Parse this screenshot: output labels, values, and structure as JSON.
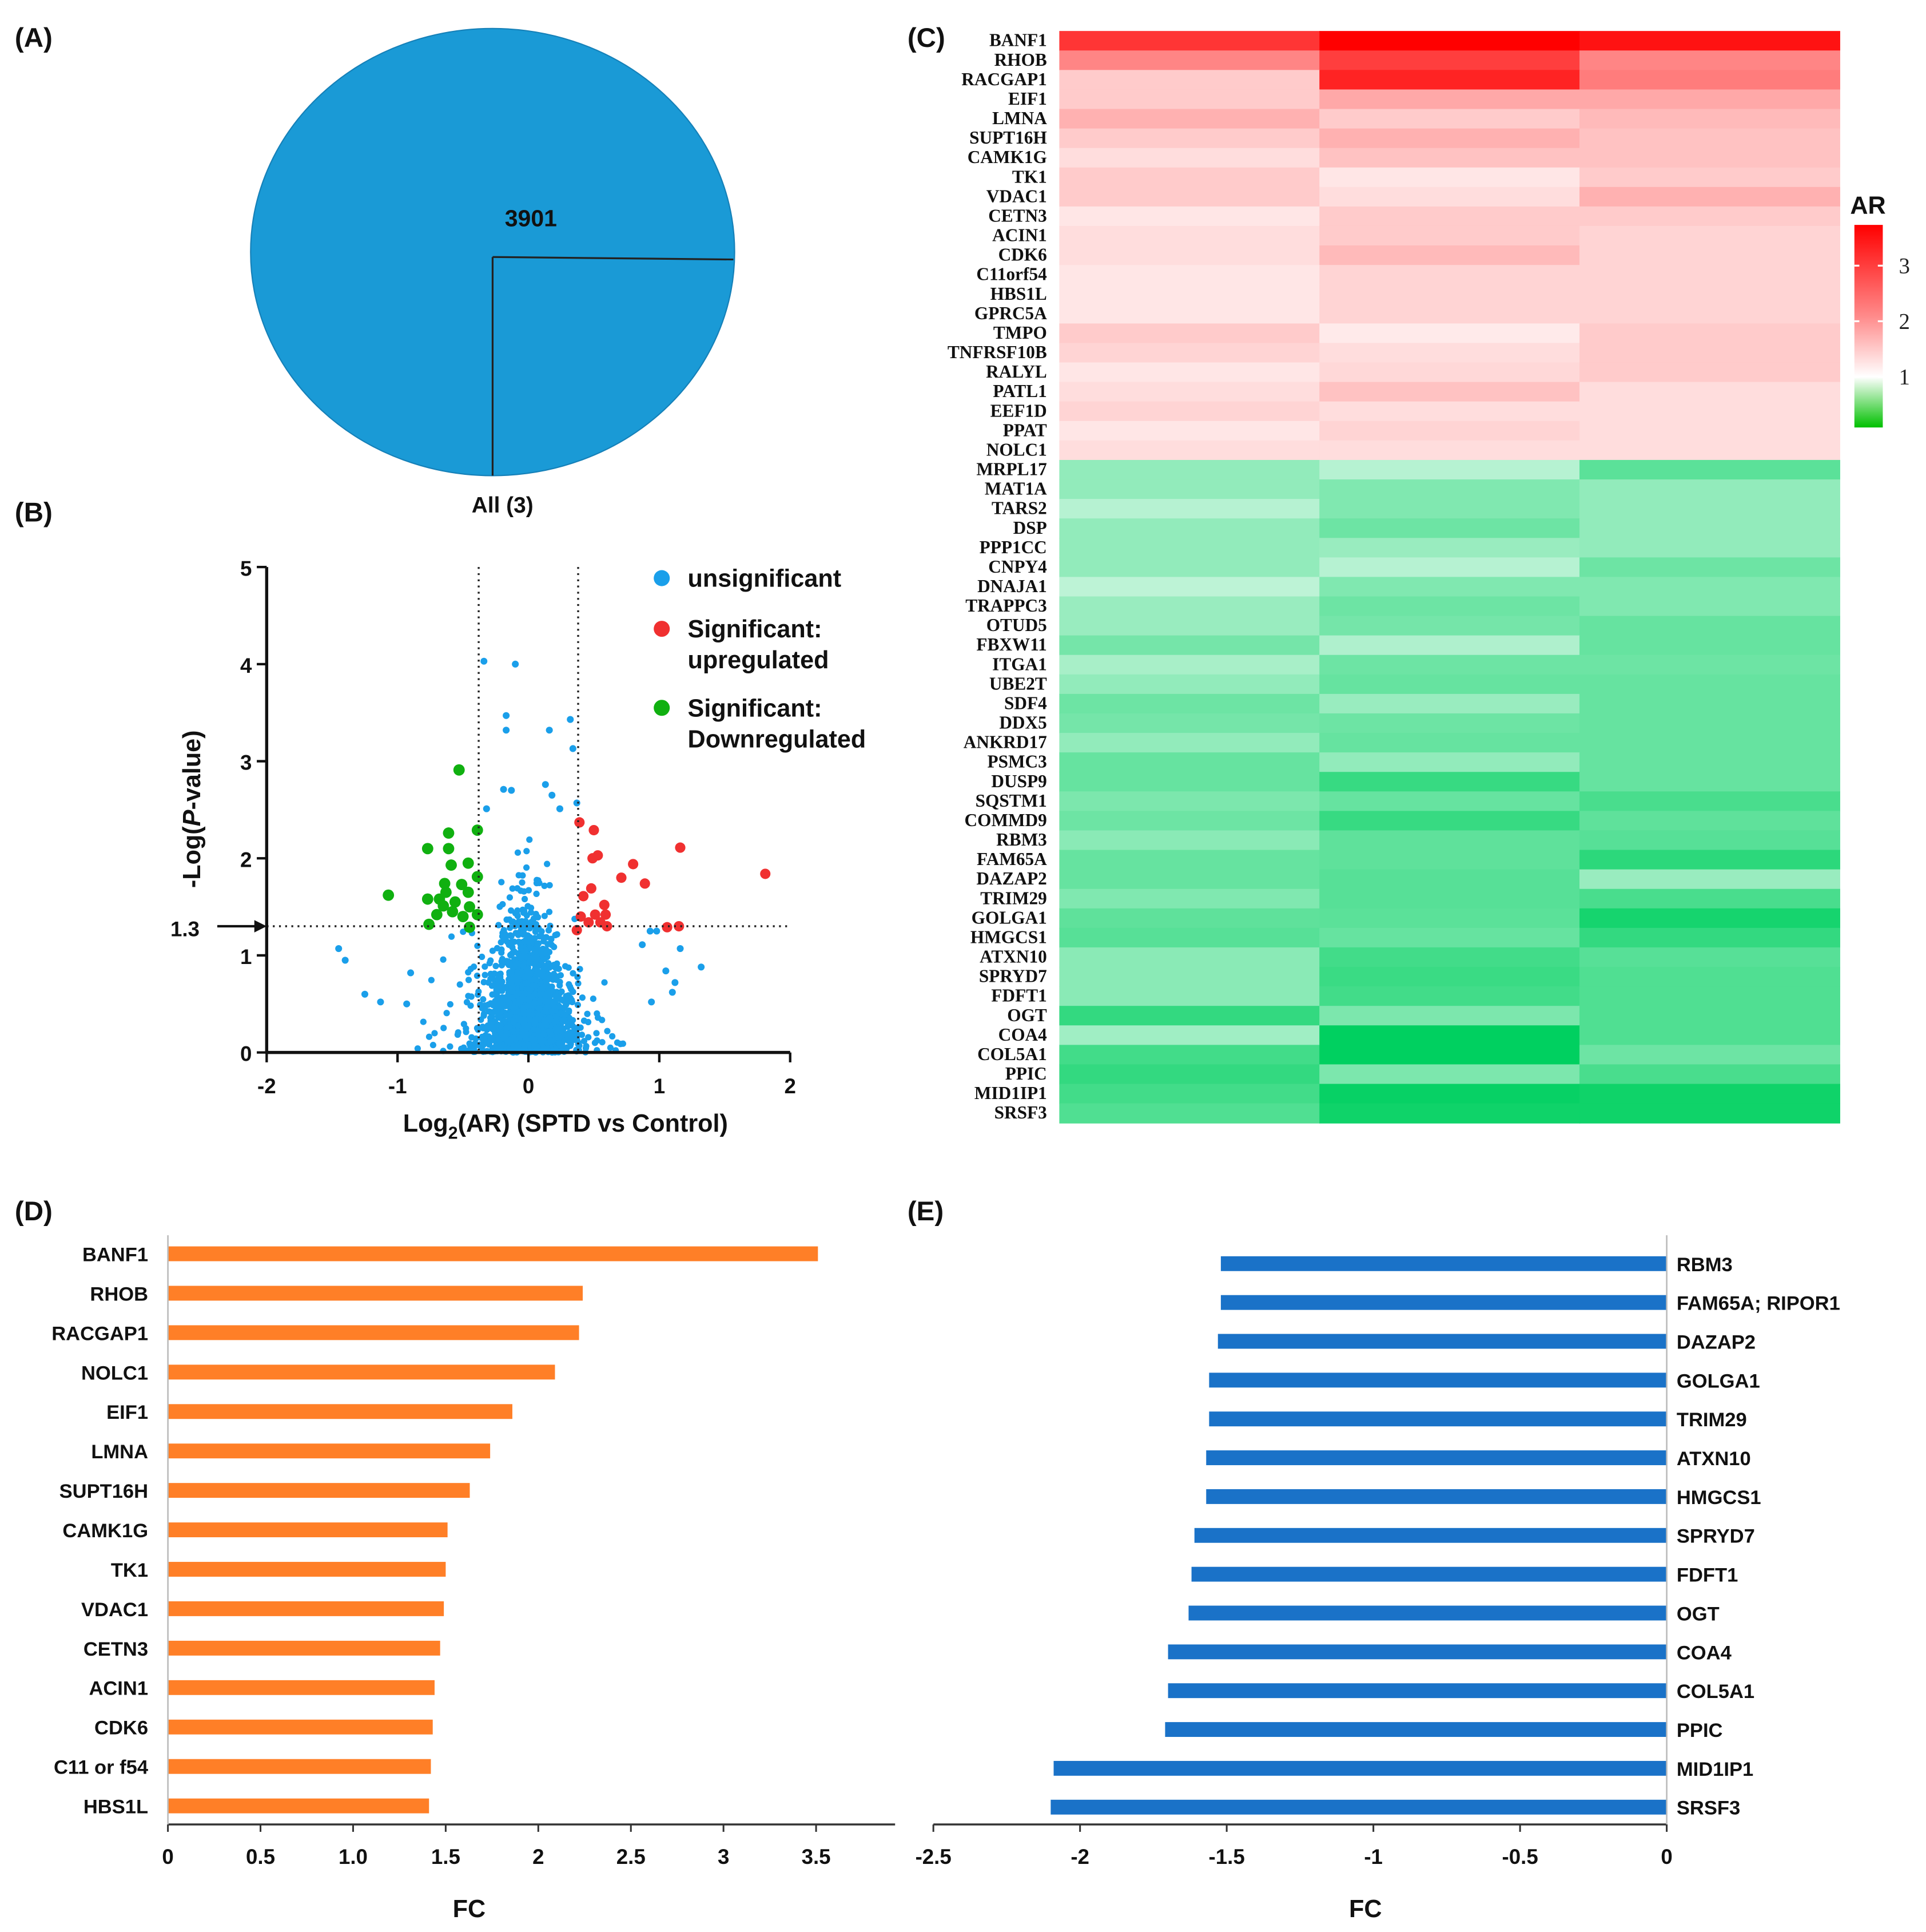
{
  "panels": {
    "a": "(A)",
    "b": "(B)",
    "c": "(C)",
    "d": "(D)",
    "e": "(E)"
  },
  "chart_data": [
    {
      "type": "pie",
      "slices": [
        {
          "label": "All (3)",
          "value": 3901
        }
      ],
      "value_label": "3901",
      "category_label": "All (3)",
      "color": "#1a9ad6"
    },
    {
      "type": "scatter",
      "xlabel_prefix": "Log",
      "xlabel_sub": "2",
      "xlabel_suffix": "(AR) (SPTD vs Control)",
      "ylabel_prefix": "-Log(",
      "ylabel_italic": "P",
      "ylabel_suffix": "-value)",
      "xlim": [
        -2,
        2
      ],
      "ylim": [
        0,
        5
      ],
      "xticks": [
        "-2",
        "-1",
        "0",
        "1",
        "2"
      ],
      "yticks": [
        "0",
        "1",
        "2",
        "3",
        "4",
        "5"
      ],
      "threshold_y": 1.3,
      "threshold_label": "1.3",
      "threshold_x": [
        -0.38,
        0.38
      ],
      "grid": false,
      "legend_position": "top-right",
      "legend": [
        {
          "label": "unsignificant",
          "color": "#1a9fea"
        },
        {
          "label": "Significant:",
          "label2": "upregulated",
          "color": "#f03030"
        },
        {
          "label": "Significant:",
          "label2": "Downregulated",
          "color": "#10b010"
        }
      ],
      "series": [
        {
          "name": "Significant: upregulated",
          "color": "#f03030",
          "points": [
            [
              0.39,
              2.37
            ],
            [
              0.5,
              2.29
            ],
            [
              1.16,
              2.11
            ],
            [
              1.81,
              1.84
            ],
            [
              0.8,
              1.94
            ],
            [
              0.71,
              1.8
            ],
            [
              0.89,
              1.74
            ],
            [
              0.49,
              2.0
            ],
            [
              0.53,
              2.03
            ],
            [
              0.48,
              1.69
            ],
            [
              0.42,
              1.61
            ],
            [
              0.58,
              1.52
            ],
            [
              0.4,
              1.4
            ],
            [
              0.51,
              1.42
            ],
            [
              0.59,
              1.42
            ],
            [
              0.46,
              1.34
            ],
            [
              0.55,
              1.34
            ],
            [
              0.6,
              1.3
            ],
            [
              0.37,
              1.26
            ],
            [
              1.06,
              1.29
            ],
            [
              1.15,
              1.3
            ]
          ]
        },
        {
          "name": "Significant: Downregulated",
          "color": "#10b010",
          "points": [
            [
              -0.53,
              2.91
            ],
            [
              -0.39,
              2.29
            ],
            [
              -0.61,
              2.26
            ],
            [
              -0.77,
              2.1
            ],
            [
              -0.61,
              2.1
            ],
            [
              -0.59,
              1.93
            ],
            [
              -0.46,
              1.95
            ],
            [
              -0.39,
              1.81
            ],
            [
              -1.07,
              1.62
            ],
            [
              -0.64,
              1.74
            ],
            [
              -0.51,
              1.73
            ],
            [
              -0.46,
              1.65
            ],
            [
              -0.77,
              1.58
            ],
            [
              -0.68,
              1.58
            ],
            [
              -0.56,
              1.55
            ],
            [
              -0.65,
              1.51
            ],
            [
              -0.58,
              1.45
            ],
            [
              -0.7,
              1.42
            ],
            [
              -0.45,
              1.5
            ],
            [
              -0.5,
              1.4
            ],
            [
              -0.39,
              1.42
            ],
            [
              -0.76,
              1.32
            ],
            [
              -0.45,
              1.29
            ],
            [
              -0.63,
              1.65
            ]
          ]
        },
        {
          "name": "unsignificant",
          "color": "#1a9fea",
          "points": [
            [
              -0.34,
              4.03
            ],
            [
              -0.1,
              4.0
            ],
            [
              -0.17,
              3.47
            ],
            [
              -0.17,
              3.32
            ],
            [
              0.16,
              3.32
            ],
            [
              0.32,
              3.43
            ],
            [
              0.34,
              3.13
            ],
            [
              -0.19,
              2.71
            ],
            [
              -0.13,
              2.7
            ],
            [
              0.13,
              2.76
            ],
            [
              0.18,
              2.65
            ],
            [
              0.37,
              2.57
            ],
            [
              -0.32,
              2.51
            ],
            [
              0.24,
              2.51
            ],
            [
              -1.45,
              1.07
            ],
            [
              -1.4,
              0.95
            ],
            [
              -1.25,
              0.6
            ],
            [
              -1.13,
              0.52
            ],
            [
              -0.93,
              0.5
            ],
            [
              -0.9,
              0.82
            ],
            [
              1.32,
              0.88
            ],
            [
              1.16,
              1.07
            ],
            [
              1.05,
              0.84
            ],
            [
              1.1,
              0.62
            ],
            [
              0.94,
              0.52
            ],
            [
              0.87,
              1.11
            ],
            [
              0.93,
              1.25
            ],
            [
              0.98,
              1.25
            ],
            [
              1.12,
              0.72
            ]
          ]
        }
      ]
    },
    {
      "type": "heatmap",
      "colorbar_title": "AR",
      "colorbar_ticks": [
        "3",
        "2",
        "1"
      ],
      "colorbar_range": [
        0.1,
        3.7
      ],
      "columns": 3,
      "rows": [
        {
          "gene": "BANF1",
          "values": [
            3.2,
            3.8,
            3.6
          ]
        },
        {
          "gene": "RHOB",
          "values": [
            2.3,
            3.1,
            2.3
          ]
        },
        {
          "gene": "RACGAP1",
          "values": [
            1.5,
            3.4,
            2.4
          ]
        },
        {
          "gene": "EIF1",
          "values": [
            1.5,
            1.9,
            1.9
          ]
        },
        {
          "gene": "LMNA",
          "values": [
            1.8,
            1.5,
            1.7
          ]
        },
        {
          "gene": "SUPT16H",
          "values": [
            1.5,
            1.8,
            1.6
          ]
        },
        {
          "gene": "CAMK1G",
          "values": [
            1.3,
            1.6,
            1.6
          ]
        },
        {
          "gene": "TK1",
          "values": [
            1.5,
            1.2,
            1.5
          ]
        },
        {
          "gene": "VDAC1",
          "values": [
            1.5,
            1.3,
            1.8
          ]
        },
        {
          "gene": "CETN3",
          "values": [
            1.2,
            1.5,
            1.5
          ]
        },
        {
          "gene": "ACIN1",
          "values": [
            1.3,
            1.5,
            1.4
          ]
        },
        {
          "gene": "CDK6",
          "values": [
            1.3,
            1.7,
            1.4
          ]
        },
        {
          "gene": "C11orf54",
          "values": [
            1.2,
            1.4,
            1.4
          ]
        },
        {
          "gene": "HBS1L",
          "values": [
            1.2,
            1.4,
            1.4
          ]
        },
        {
          "gene": "GPRC5A",
          "values": [
            1.2,
            1.4,
            1.4
          ]
        },
        {
          "gene": "TMPO",
          "values": [
            1.5,
            1.15,
            1.5
          ]
        },
        {
          "gene": "TNFRSF10B",
          "values": [
            1.4,
            1.3,
            1.5
          ]
        },
        {
          "gene": "RALYL",
          "values": [
            1.2,
            1.35,
            1.5
          ]
        },
        {
          "gene": "PATL1",
          "values": [
            1.3,
            1.6,
            1.3
          ]
        },
        {
          "gene": "EEF1D",
          "values": [
            1.4,
            1.3,
            1.3
          ]
        },
        {
          "gene": "PPAT",
          "values": [
            1.2,
            1.4,
            1.3
          ]
        },
        {
          "gene": "NOLC1",
          "values": [
            1.3,
            1.3,
            1.3
          ]
        },
        {
          "gene": "MRPL17",
          "values": [
            0.7,
            0.8,
            0.55
          ]
        },
        {
          "gene": "MAT1A",
          "values": [
            0.7,
            0.65,
            0.7
          ]
        },
        {
          "gene": "TARS2",
          "values": [
            0.8,
            0.65,
            0.7
          ]
        },
        {
          "gene": "DSP",
          "values": [
            0.7,
            0.6,
            0.7
          ]
        },
        {
          "gene": "PPP1CC",
          "values": [
            0.7,
            0.72,
            0.7
          ]
        },
        {
          "gene": "CNPY4",
          "values": [
            0.7,
            0.8,
            0.6
          ]
        },
        {
          "gene": "DNAJA1",
          "values": [
            0.82,
            0.65,
            0.65
          ]
        },
        {
          "gene": "TRAPPC3",
          "values": [
            0.72,
            0.6,
            0.65
          ]
        },
        {
          "gene": "OTUD5",
          "values": [
            0.72,
            0.62,
            0.58
          ]
        },
        {
          "gene": "FBXW11",
          "values": [
            0.62,
            0.78,
            0.58
          ]
        },
        {
          "gene": "ITGA1",
          "values": [
            0.76,
            0.6,
            0.6
          ]
        },
        {
          "gene": "UBE2T",
          "values": [
            0.7,
            0.58,
            0.58
          ]
        },
        {
          "gene": "SDF4",
          "values": [
            0.6,
            0.72,
            0.58
          ]
        },
        {
          "gene": "DDX5",
          "values": [
            0.62,
            0.6,
            0.58
          ]
        },
        {
          "gene": "ANKRD17",
          "values": [
            0.7,
            0.58,
            0.58
          ]
        },
        {
          "gene": "PSMC3",
          "values": [
            0.58,
            0.7,
            0.58
          ]
        },
        {
          "gene": "DUSP9",
          "values": [
            0.58,
            0.45,
            0.58
          ]
        },
        {
          "gene": "SQSTM1",
          "values": [
            0.64,
            0.58,
            0.5
          ]
        },
        {
          "gene": "COMMD9",
          "values": [
            0.6,
            0.45,
            0.56
          ]
        },
        {
          "gene": "RBM3",
          "values": [
            0.68,
            0.56,
            0.54
          ]
        },
        {
          "gene": "FAM65A",
          "values": [
            0.58,
            0.56,
            0.42
          ]
        },
        {
          "gene": "DAZAP2",
          "values": [
            0.58,
            0.54,
            0.72
          ]
        },
        {
          "gene": "TRIM29",
          "values": [
            0.65,
            0.54,
            0.5
          ]
        },
        {
          "gene": "GOLGA1",
          "values": [
            0.56,
            0.55,
            0.36
          ]
        },
        {
          "gene": "HMGCS1",
          "values": [
            0.54,
            0.58,
            0.44
          ]
        },
        {
          "gene": "ATXN10",
          "values": [
            0.68,
            0.48,
            0.54
          ]
        },
        {
          "gene": "SPRYD7",
          "values": [
            0.68,
            0.46,
            0.52
          ]
        },
        {
          "gene": "FDFT1",
          "values": [
            0.68,
            0.48,
            0.52
          ]
        },
        {
          "gene": "OGT",
          "values": [
            0.44,
            0.64,
            0.52
          ]
        },
        {
          "gene": "COA4",
          "values": [
            0.74,
            0.3,
            0.52
          ]
        },
        {
          "gene": "COL5A1",
          "values": [
            0.48,
            0.3,
            0.6
          ]
        },
        {
          "gene": "PPIC",
          "values": [
            0.44,
            0.64,
            0.5
          ]
        },
        {
          "gene": "MID1IP1",
          "values": [
            0.48,
            0.32,
            0.34
          ]
        },
        {
          "gene": "SRSF3",
          "values": [
            0.52,
            0.34,
            0.34
          ]
        }
      ]
    },
    {
      "type": "bar",
      "orientation": "horizontal",
      "color": "#ff7f27",
      "categories": [
        "BANF1",
        "RHOB",
        "RACGAP1",
        "NOLC1",
        "EIF1",
        "LMNA",
        "SUPT16H",
        "CAMK1G",
        "TK1",
        "VDAC1",
        "CETN3",
        "ACIN1",
        "CDK6",
        "C11 or f54",
        "HBS1L"
      ],
      "values": [
        3.51,
        2.24,
        2.22,
        2.09,
        1.86,
        1.74,
        1.63,
        1.51,
        1.5,
        1.49,
        1.47,
        1.44,
        1.43,
        1.42,
        1.41
      ],
      "xlabel": "FC",
      "xlim": [
        0,
        3.9
      ],
      "xticks": [
        "0",
        "0.5",
        "1.0",
        "1.5",
        "2",
        "2.5",
        "3",
        "3.5"
      ]
    },
    {
      "type": "bar",
      "orientation": "horizontal",
      "color": "#1a72c8",
      "categories": [
        "RBM3",
        "FAM65A; RIPOR1",
        "DAZAP2",
        "GOLGA1",
        "TRIM29",
        "ATXN10",
        "HMGCS1",
        "SPRYD7",
        "FDFT1",
        "OGT",
        "COA4",
        "COL5A1",
        "PPIC",
        "MID1IP1",
        "SRSF3"
      ],
      "values": [
        -1.52,
        -1.52,
        -1.53,
        -1.56,
        -1.56,
        -1.57,
        -1.57,
        -1.61,
        -1.62,
        -1.63,
        -1.7,
        -1.7,
        -1.71,
        -2.09,
        -2.1
      ],
      "xlabel": "FC",
      "xlim": [
        -2.5,
        0
      ],
      "xticks": [
        "-2.5",
        "-2",
        "-1.5",
        "-1",
        "-0.5",
        "0"
      ]
    }
  ]
}
